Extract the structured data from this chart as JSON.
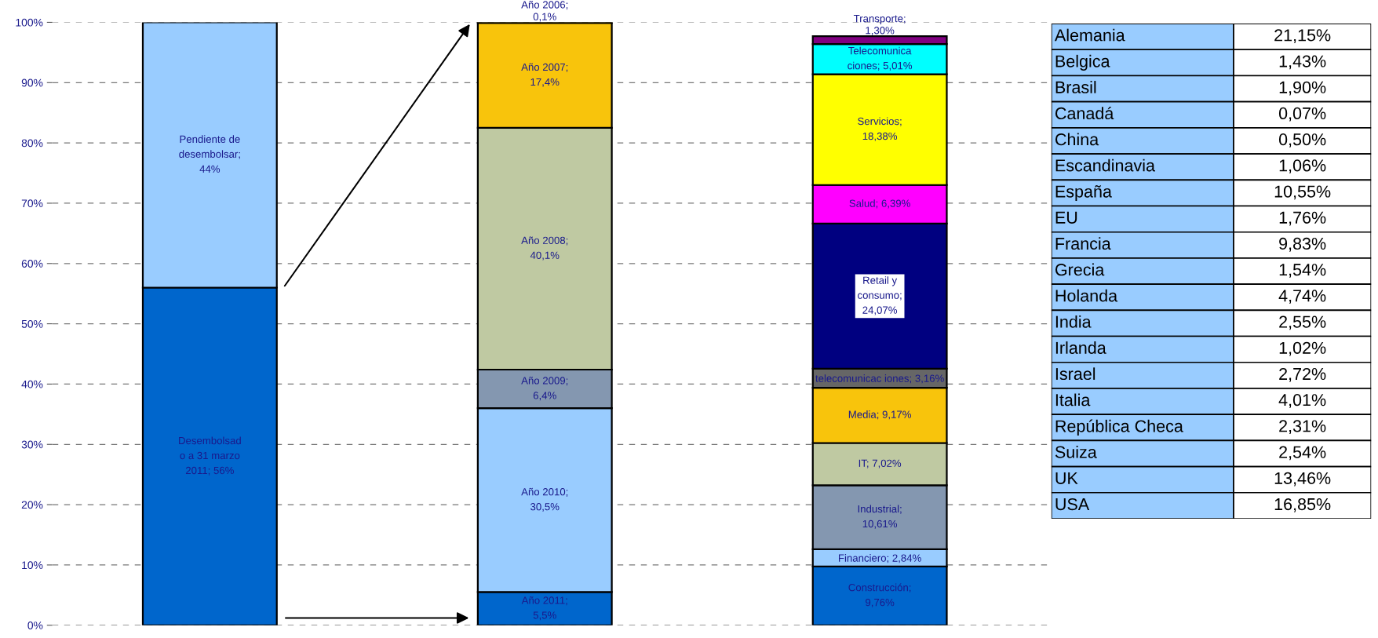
{
  "chart_data": [
    {
      "type": "bar",
      "stacked": true,
      "categories": [
        null,
        null,
        null
      ],
      "ylim": [
        0,
        100
      ],
      "yticks": [
        {
          "value": 0,
          "label": "0%"
        },
        {
          "value": 10,
          "label": "10%"
        },
        {
          "value": 20,
          "label": "20%"
        },
        {
          "value": 30,
          "label": "30%"
        },
        {
          "value": 40,
          "label": "40%"
        },
        {
          "value": 50,
          "label": "50%"
        },
        {
          "value": 60,
          "label": "60%"
        },
        {
          "value": 70,
          "label": "70%"
        },
        {
          "value": 80,
          "label": "80%"
        },
        {
          "value": 90,
          "label": "90%"
        },
        {
          "value": 100,
          "label": "100%"
        }
      ],
      "grid": "y",
      "tick_labels": "y",
      "legend": false,
      "series": [
        {
          "color": "#0066cc",
          "values": [
            56,
            null,
            null
          ],
          "value_labels": [
            "Desembolsad\no a 31 marzo\n2011; 56%",
            null,
            null
          ]
        },
        {
          "color": "#99ccff",
          "values": [
            44,
            null,
            null
          ],
          "value_labels": [
            "Pendiente de\ndesembolsar;\n44%",
            null,
            null
          ]
        },
        {
          "color": "#0066cc",
          "values": [
            null,
            5.5,
            null
          ],
          "value_labels": [
            null,
            "Año 2011;\n5,5%",
            null
          ]
        },
        {
          "color": "#99ccff",
          "values": [
            null,
            30.5,
            null
          ],
          "value_labels": [
            null,
            "Año 2010;\n30,5%",
            null
          ]
        },
        {
          "color": "#8497b0",
          "values": [
            null,
            6.4,
            null
          ],
          "value_labels": [
            null,
            "Año 2009;\n6,4%",
            null
          ]
        },
        {
          "color": "#bfc9a2",
          "values": [
            null,
            40.1,
            null
          ],
          "value_labels": [
            null,
            "Año 2008;\n40,1%",
            null
          ]
        },
        {
          "color": "#f8c40c",
          "values": [
            null,
            17.4,
            null
          ],
          "value_labels": [
            null,
            "Año 2007;\n17,4%",
            null
          ]
        },
        {
          "color": "#f8c40c",
          "values": [
            null,
            0.1,
            null
          ],
          "value_labels": [
            null,
            "Año 2006;\n0,1%",
            null
          ]
        },
        {
          "color": "#0066cc",
          "values": [
            null,
            null,
            9.76
          ],
          "value_labels": [
            null,
            null,
            "Construcción;\n9,76%"
          ]
        },
        {
          "color": "#99ccff",
          "values": [
            null,
            null,
            2.84
          ],
          "value_labels": [
            null,
            null,
            "Financiero;\n2,84%"
          ]
        },
        {
          "color": "#8497b0",
          "values": [
            null,
            null,
            10.61
          ],
          "value_labels": [
            null,
            null,
            "Industrial;\n10,61%"
          ]
        },
        {
          "color": "#bfc9a2",
          "values": [
            null,
            null,
            7.02
          ],
          "value_labels": [
            null,
            null,
            "IT; 7,02%"
          ]
        },
        {
          "color": "#f8c40c",
          "values": [
            null,
            null,
            9.17
          ],
          "value_labels": [
            null,
            null,
            "Media; 9,17%"
          ]
        },
        {
          "color": "#666666",
          "values": [
            null,
            null,
            3.16
          ],
          "value_labels": [
            null,
            null,
            "telecomunicac\niones; 3,16%"
          ]
        },
        {
          "color": "#000080",
          "values": [
            null,
            null,
            24.07
          ],
          "value_labels": [
            null,
            null,
            "Retail y\nconsumo;\n24,07%"
          ]
        },
        {
          "color": "#ff00ff",
          "values": [
            null,
            null,
            6.39
          ],
          "value_labels": [
            null,
            null,
            "Salud; 6,39%"
          ]
        },
        {
          "color": "#ffff00",
          "values": [
            null,
            null,
            18.38
          ],
          "value_labels": [
            null,
            null,
            "Servicios;\n18,38%"
          ]
        },
        {
          "color": "#00ffff",
          "values": [
            null,
            null,
            5.01
          ],
          "value_labels": [
            null,
            null,
            "Telecomunica\nciones; 5,01%"
          ]
        },
        {
          "color": "#800080",
          "values": [
            null,
            null,
            1.3
          ],
          "value_labels": [
            null,
            null,
            "Transporte;\n1,30%"
          ]
        }
      ]
    },
    {
      "type": "other",
      "categories": [
        "Alemania",
        "Belgica",
        "Brasil",
        "Canadá",
        "China",
        "Escandinavia",
        "España",
        "EU",
        "Francia",
        "Grecia",
        "Holanda",
        "India",
        "Irlanda",
        "Israel",
        "Italia",
        "República Checa",
        "Suiza",
        "UK",
        "USA"
      ],
      "value_labels": [
        "21,15%",
        "1,43%",
        "1,90%",
        "0,07%",
        "0,50%",
        "1,06%",
        "10,55%",
        "1,76%",
        "9,83%",
        "1,54%",
        "4,74%",
        "2,55%",
        "1,02%",
        "2,72%",
        "4,01%",
        "2,31%",
        "2,54%",
        "13,46%",
        "16,85%"
      ]
    }
  ]
}
